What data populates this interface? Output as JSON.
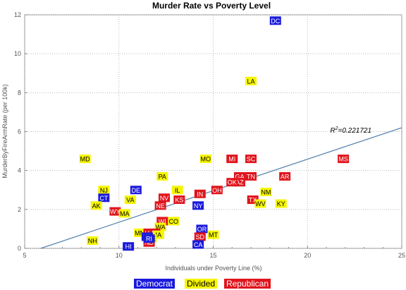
{
  "colors": {
    "Democrat": "#1a1adc",
    "Divided": "#f5f500",
    "Republican": "#e0141c",
    "fit_line": "#5a86b0"
  },
  "annotation": {
    "r2_symbol": "R",
    "r2_sup": "2",
    "r2_value": "=0.221721"
  },
  "chart_data": {
    "type": "scatter",
    "title": "Murder Rate vs Poverty Level",
    "xlabel": "Individuals under Poverty Line (%)",
    "ylabel": "MurderByFireArmRate  (per 100k)",
    "xlim": [
      5,
      25
    ],
    "ylim": [
      0,
      12
    ],
    "xticks": [
      5,
      10,
      15,
      20,
      25
    ],
    "yticks": [
      0,
      2,
      4,
      6,
      8,
      10,
      12
    ],
    "grid": true,
    "legend_position": "bottom",
    "legend": [
      "Democrat",
      "Divided",
      "Republican"
    ],
    "fit_line": {
      "x": [
        5.85,
        25
      ],
      "y": [
        0,
        6.2
      ]
    },
    "points": [
      {
        "label": "DC",
        "party": "Democrat",
        "x": 18.3,
        "y": 11.7
      },
      {
        "label": "LA",
        "party": "Divided",
        "x": 17.0,
        "y": 8.6
      },
      {
        "label": "MS",
        "party": "Republican",
        "x": 21.9,
        "y": 4.6
      },
      {
        "label": "MD",
        "party": "Divided",
        "x": 8.2,
        "y": 4.6
      },
      {
        "label": "MO",
        "party": "Divided",
        "x": 14.6,
        "y": 4.6
      },
      {
        "label": "MI",
        "party": "Republican",
        "x": 16.0,
        "y": 4.6
      },
      {
        "label": "SC",
        "party": "Republican",
        "x": 17.0,
        "y": 4.6
      },
      {
        "label": "PA",
        "party": "Divided",
        "x": 12.3,
        "y": 3.7
      },
      {
        "label": "GA",
        "party": "Republican",
        "x": 16.4,
        "y": 3.7
      },
      {
        "label": "TN",
        "party": "Republican",
        "x": 17.0,
        "y": 3.7
      },
      {
        "label": "AR",
        "party": "Republican",
        "x": 18.8,
        "y": 3.7
      },
      {
        "label": "AZ",
        "party": "Republican",
        "x": 16.4,
        "y": 3.4
      },
      {
        "label": "OK",
        "party": "Republican",
        "x": 16.0,
        "y": 3.4
      },
      {
        "label": "NJ",
        "party": "Divided",
        "x": 9.2,
        "y": 3.0
      },
      {
        "label": "DE",
        "party": "Democrat",
        "x": 10.9,
        "y": 3.0
      },
      {
        "label": "IL",
        "party": "Divided",
        "x": 13.1,
        "y": 3.0
      },
      {
        "label": "OH",
        "party": "Republican",
        "x": 15.2,
        "y": 3.0
      },
      {
        "label": "NM",
        "party": "Divided",
        "x": 17.8,
        "y": 2.9
      },
      {
        "label": "IN",
        "party": "Republican",
        "x": 14.3,
        "y": 2.8
      },
      {
        "label": "CT",
        "party": "Democrat",
        "x": 9.2,
        "y": 2.6
      },
      {
        "label": "VA",
        "party": "Divided",
        "x": 10.6,
        "y": 2.5
      },
      {
        "label": "NV",
        "party": "Republican",
        "x": 12.4,
        "y": 2.6
      },
      {
        "label": "KS",
        "party": "Republican",
        "x": 13.2,
        "y": 2.5
      },
      {
        "label": "TX",
        "party": "Republican",
        "x": 17.1,
        "y": 2.5
      },
      {
        "label": "WV",
        "party": "Divided",
        "x": 17.5,
        "y": 2.3
      },
      {
        "label": "KY",
        "party": "Divided",
        "x": 18.6,
        "y": 2.3
      },
      {
        "label": "AK",
        "party": "Divided",
        "x": 8.8,
        "y": 2.2
      },
      {
        "label": "NE",
        "party": "Republican",
        "x": 12.2,
        "y": 2.2
      },
      {
        "label": "NY",
        "party": "Democrat",
        "x": 14.2,
        "y": 2.2
      },
      {
        "label": "WY",
        "party": "Republican",
        "x": 9.8,
        "y": 1.9
      },
      {
        "label": "MA",
        "party": "Divided",
        "x": 10.3,
        "y": 1.8
      },
      {
        "label": "WI",
        "party": "Republican",
        "x": 12.3,
        "y": 1.4
      },
      {
        "label": "CO",
        "party": "Divided",
        "x": 12.9,
        "y": 1.4
      },
      {
        "label": "WA",
        "party": "Divided",
        "x": 12.2,
        "y": 1.1
      },
      {
        "label": "OR",
        "party": "Democrat",
        "x": 14.4,
        "y": 1.0
      },
      {
        "label": "MN",
        "party": "Divided",
        "x": 11.1,
        "y": 0.8
      },
      {
        "label": "UT",
        "party": "Republican",
        "x": 11.6,
        "y": 0.8
      },
      {
        "label": "ID",
        "party": "Republican",
        "x": 11.9,
        "y": 0.8
      },
      {
        "label": "MT",
        "party": "Divided",
        "x": 15.0,
        "y": 0.7
      },
      {
        "label": "IA",
        "party": "Divided",
        "x": 12.1,
        "y": 0.7
      },
      {
        "label": "SD",
        "party": "Republican",
        "x": 14.3,
        "y": 0.6
      },
      {
        "label": "VT",
        "party": "Democrat",
        "x": 11.5,
        "y": 0.6
      },
      {
        "label": "ME",
        "party": "Divided",
        "x": 11.7,
        "y": 0.5
      },
      {
        "label": "NH",
        "party": "Divided",
        "x": 8.6,
        "y": 0.4
      },
      {
        "label": "ND",
        "party": "Republican",
        "x": 11.6,
        "y": 0.3
      },
      {
        "label": "RI",
        "party": "Democrat",
        "x": 11.6,
        "y": 0.5
      },
      {
        "label": "HI",
        "party": "Democrat",
        "x": 10.5,
        "y": 0.1
      },
      {
        "label": "CA",
        "party": "Democrat",
        "x": 14.2,
        "y": 0.2
      }
    ]
  }
}
